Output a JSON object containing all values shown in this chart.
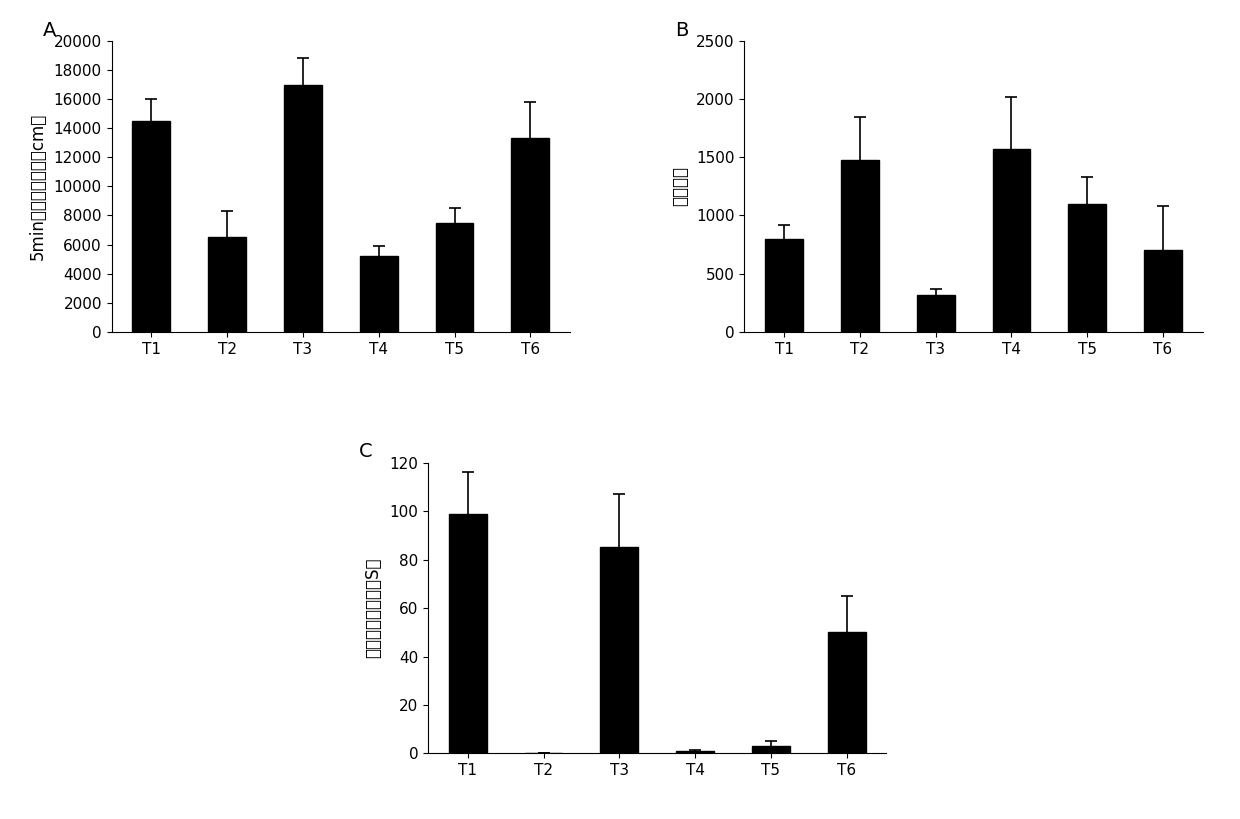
{
  "A": {
    "categories": [
      "T1",
      "T2",
      "T3",
      "T4",
      "T5",
      "T6"
    ],
    "values": [
      14500,
      6500,
      17000,
      5200,
      7500,
      13300
    ],
    "errors": [
      1500,
      1800,
      1800,
      700,
      1000,
      2500
    ],
    "ylabel": "5min内总运动距离（cm）",
    "ylim": [
      0,
      20000
    ],
    "yticks": [
      0,
      2000,
      4000,
      6000,
      8000,
      10000,
      12000,
      14000,
      16000,
      18000,
      20000
    ],
    "label": "A"
  },
  "B": {
    "categories": [
      "T1",
      "T2",
      "T3",
      "T4",
      "T5",
      "T6"
    ],
    "values": [
      800,
      1480,
      320,
      1570,
      1100,
      700
    ],
    "errors": [
      120,
      370,
      50,
      450,
      230,
      380
    ],
    "ylabel": "水滴频率",
    "ylim": [
      0,
      2500
    ],
    "yticks": [
      0,
      500,
      1000,
      1500,
      2000,
      2500
    ],
    "label": "B"
  },
  "C": {
    "categories": [
      "T1",
      "T2",
      "T3",
      "T4",
      "T5",
      "T6"
    ],
    "values": [
      99,
      0,
      85,
      1,
      3,
      50
    ],
    "errors": [
      17,
      0,
      22,
      0.5,
      2,
      15
    ],
    "ylabel": "在上层停留时间（S）",
    "ylim": [
      0,
      120
    ],
    "yticks": [
      0,
      20,
      40,
      60,
      80,
      100,
      120
    ],
    "label": "C"
  },
  "bar_color": "#000000",
  "bar_edge_color": "#000000",
  "background_color": "#ffffff",
  "tick_fontsize": 11,
  "label_fontsize": 12,
  "panel_label_fontsize": 14
}
